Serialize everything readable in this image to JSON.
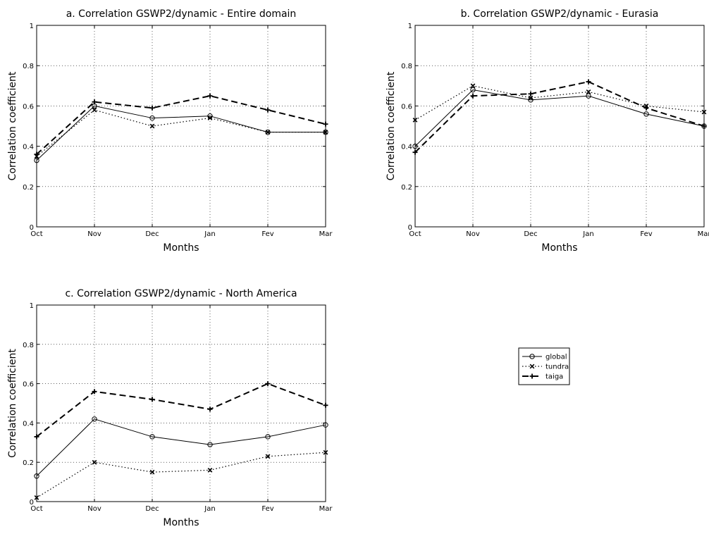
{
  "legend": {
    "entries": [
      "global",
      "tundra",
      "taiga"
    ],
    "placement": "right"
  },
  "chart_data": [
    {
      "type": "line",
      "title": "a. Correlation GSWP2/dynamic - Entire domain",
      "xlabel": "Months",
      "ylabel": "Correlation coefficient",
      "categories": [
        "Oct",
        "Nov",
        "Dec",
        "Jan",
        "Fev",
        "Mar"
      ],
      "ylim": [
        0,
        1
      ],
      "yticks": [
        "0",
        "0.2",
        "0.4",
        "0.6",
        "0.8",
        "1"
      ],
      "grid": true,
      "series": [
        {
          "name": "global",
          "style": "solid",
          "marker": "circle",
          "values": [
            0.33,
            0.6,
            0.54,
            0.55,
            0.47,
            0.47
          ]
        },
        {
          "name": "tundra",
          "style": "dotted",
          "marker": "x",
          "values": [
            0.35,
            0.58,
            0.5,
            0.54,
            0.47,
            0.47
          ]
        },
        {
          "name": "taiga",
          "style": "dashed",
          "marker": "plus",
          "values": [
            0.36,
            0.62,
            0.59,
            0.65,
            0.58,
            0.51
          ]
        }
      ]
    },
    {
      "type": "line",
      "title": "b. Correlation GSWP2/dynamic - Eurasia",
      "xlabel": "Months",
      "ylabel": "Correlation coefficient",
      "categories": [
        "Oct",
        "Nov",
        "Dec",
        "Jan",
        "Fev",
        "Mar"
      ],
      "ylim": [
        0,
        1
      ],
      "yticks": [
        "0",
        "0.2",
        "0.4",
        "0.6",
        "0.8",
        "1"
      ],
      "grid": true,
      "series": [
        {
          "name": "global",
          "style": "solid",
          "marker": "circle",
          "values": [
            0.4,
            0.68,
            0.63,
            0.65,
            0.56,
            0.5
          ]
        },
        {
          "name": "tundra",
          "style": "dotted",
          "marker": "x",
          "values": [
            0.53,
            0.7,
            0.64,
            0.67,
            0.6,
            0.57
          ]
        },
        {
          "name": "taiga",
          "style": "dashed",
          "marker": "plus",
          "values": [
            0.37,
            0.65,
            0.66,
            0.72,
            0.59,
            0.5
          ]
        }
      ]
    },
    {
      "type": "line",
      "title": "c. Correlation GSWP2/dynamic - North America",
      "xlabel": "Months",
      "ylabel": "Correlation coefficient",
      "categories": [
        "Oct",
        "Nov",
        "Dec",
        "Jan",
        "Fev",
        "Mar"
      ],
      "ylim": [
        0,
        1
      ],
      "yticks": [
        "0",
        "0.2",
        "0.4",
        "0.6",
        "0.8",
        "1"
      ],
      "grid": true,
      "series": [
        {
          "name": "global",
          "style": "solid",
          "marker": "circle",
          "values": [
            0.13,
            0.42,
            0.33,
            0.29,
            0.33,
            0.39
          ]
        },
        {
          "name": "tundra",
          "style": "dotted",
          "marker": "x",
          "values": [
            0.02,
            0.2,
            0.15,
            0.16,
            0.23,
            0.25
          ]
        },
        {
          "name": "taiga",
          "style": "dashed",
          "marker": "plus",
          "values": [
            0.33,
            0.56,
            0.52,
            0.47,
            0.6,
            0.49
          ]
        }
      ]
    }
  ]
}
